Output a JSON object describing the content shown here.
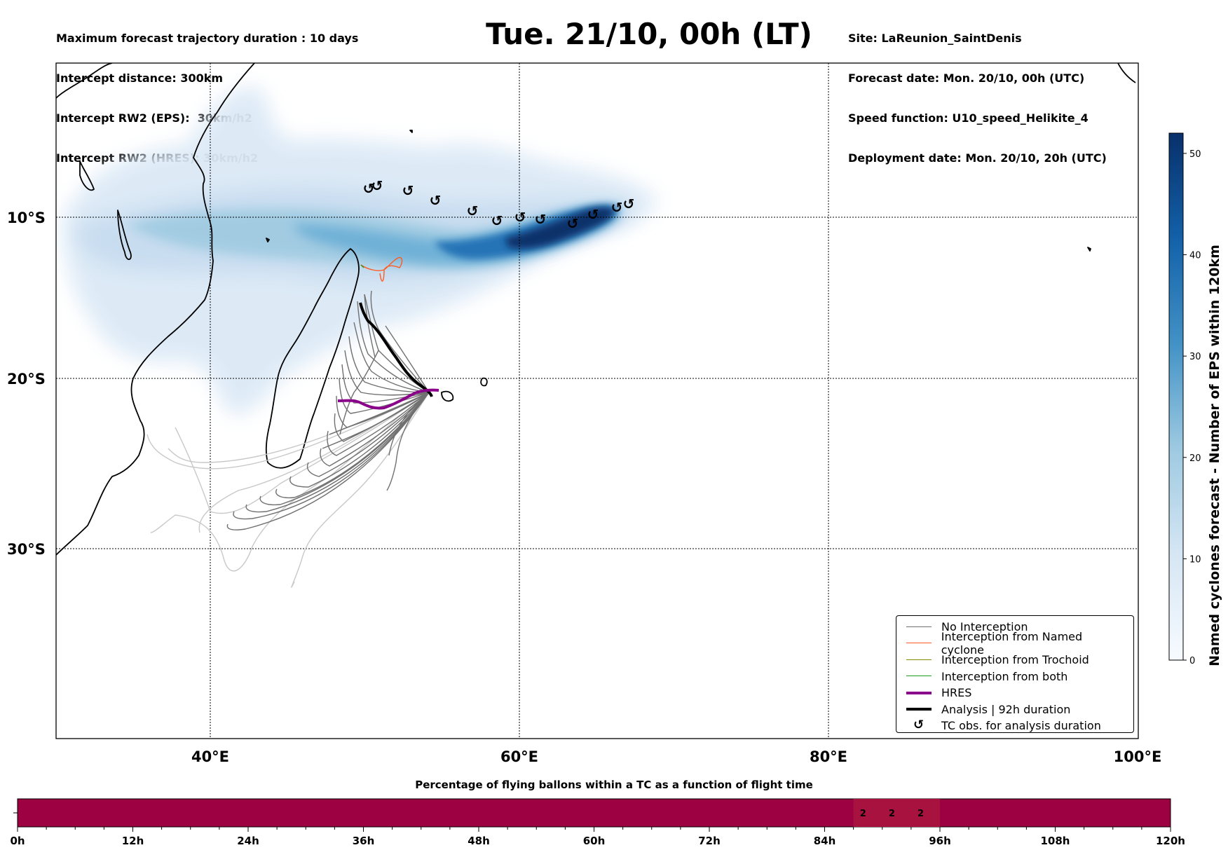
{
  "header": {
    "info_left": [
      "Maximum forecast trajectory duration : 10 days",
      "Intercept distance: 300km",
      "Intercept RW2 (EPS):  30km/h2",
      "Intercept RW2 (HRES): 30km/h2"
    ],
    "title": "Tue. 21/10, 00h (LT)",
    "info_right": [
      "Site: LaReunion_SaintDenis",
      "Forecast date: Mon. 20/10, 00h (UTC)",
      "Speed function: U10_speed_Helikite_4",
      "Deployment date: Mon. 20/10, 20h (UTC)"
    ]
  },
  "map": {
    "lat_labels": [
      "10°S",
      "20°S",
      "30°S"
    ],
    "lon_labels": [
      "40°E",
      "60°E",
      "80°E",
      "100°E"
    ],
    "tc_obs_glyph": "↺",
    "tc_obs_count": 12,
    "colors": {
      "no_interception": "#707070",
      "named_cyclone": "#ff5a1f",
      "trochoid": "#8b8b00",
      "both": "#1e9b1e",
      "hres": "#8b008b",
      "analysis": "#000000",
      "density_low": "#dbe9f6",
      "density_high": "#08306b"
    }
  },
  "legend": {
    "items": [
      {
        "label": "No Interception",
        "kind": "line",
        "color": "#707070",
        "width": 1.5
      },
      {
        "label": "Interception from Named cyclone",
        "kind": "line",
        "color": "#ff5a1f",
        "width": 1.5
      },
      {
        "label": "Interception from Trochoid",
        "kind": "line",
        "color": "#8b8b00",
        "width": 1.5
      },
      {
        "label": "Interception from both",
        "kind": "line",
        "color": "#1e9b1e",
        "width": 1.5
      },
      {
        "label": "HRES",
        "kind": "line",
        "color": "#8b008b",
        "width": 4
      },
      {
        "label": "Analysis | 92h duration",
        "kind": "line",
        "color": "#000000",
        "width": 4
      },
      {
        "label": "TC obs. for analysis duration",
        "kind": "glyph",
        "glyph": "↺"
      }
    ]
  },
  "colorbar": {
    "label": "Named cyclones forecast - Number of EPS within 120km",
    "ticks": [
      0,
      10,
      20,
      30,
      40,
      50
    ],
    "max": 52,
    "color_low": "#f7fbff",
    "color_high": "#08306b"
  },
  "bottom_bar": {
    "title": "Percentage of flying ballons within a TC as a function of flight time",
    "tick_labels": [
      "0h",
      "12h",
      "24h",
      "36h",
      "48h",
      "60h",
      "72h",
      "84h",
      "96h",
      "108h",
      "120h"
    ],
    "range_hours": [
      0,
      120
    ],
    "bar_color": "#9e0142",
    "highlight_color": "#a8123f",
    "highlight_range_hours": [
      87,
      96
    ],
    "values": [
      {
        "hour": 88,
        "label": "2"
      },
      {
        "hour": 91,
        "label": "2"
      },
      {
        "hour": 94,
        "label": "2"
      }
    ]
  }
}
